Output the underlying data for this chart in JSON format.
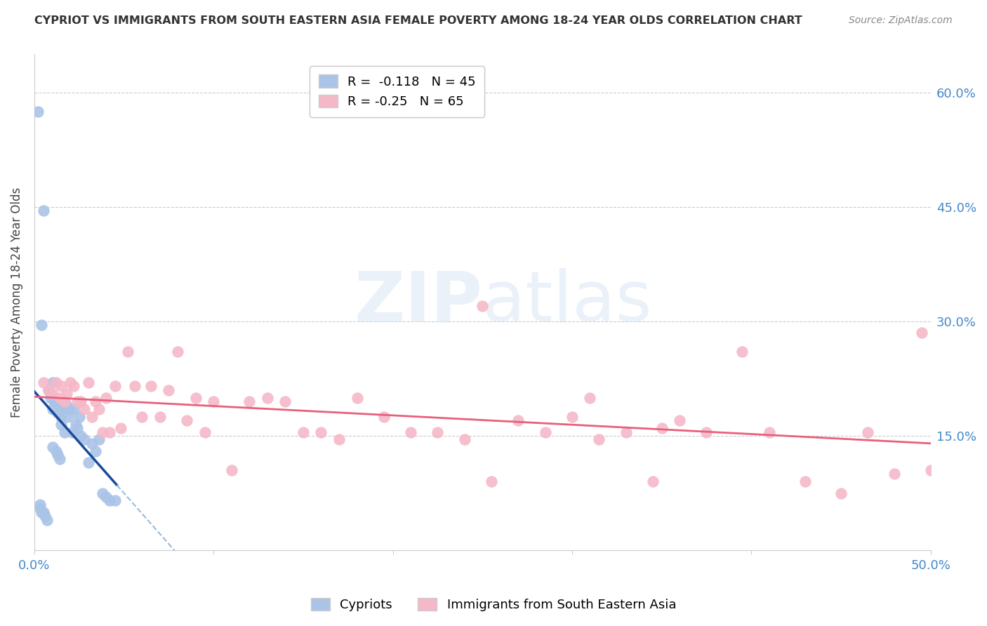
{
  "title": "CYPRIOT VS IMMIGRANTS FROM SOUTH EASTERN ASIA FEMALE POVERTY AMONG 18-24 YEAR OLDS CORRELATION CHART",
  "source": "Source: ZipAtlas.com",
  "ylabel": "Female Poverty Among 18-24 Year Olds",
  "xlim": [
    0.0,
    0.5
  ],
  "ylim": [
    0.0,
    0.65
  ],
  "ytick_vals": [
    0.15,
    0.3,
    0.45,
    0.6
  ],
  "ytick_labels": [
    "15.0%",
    "30.0%",
    "45.0%",
    "60.0%"
  ],
  "xtick_vals": [
    0.0,
    0.5
  ],
  "xtick_labels": [
    "0.0%",
    "50.0%"
  ],
  "grid_color": "#cccccc",
  "background_color": "#ffffff",
  "series1_label": "Cypriots",
  "series1_color": "#aac4e8",
  "series1_R": -0.118,
  "series1_N": 45,
  "series1_line_color": "#1a4a9a",
  "series1_line_dash_color": "#99bbdd",
  "series2_label": "Immigrants from South Eastern Asia",
  "series2_color": "#f5b8c8",
  "series2_R": -0.25,
  "series2_N": 65,
  "series2_line_color": "#e8607a",
  "cypriot_x": [
    0.002,
    0.003,
    0.003,
    0.004,
    0.004,
    0.005,
    0.005,
    0.006,
    0.007,
    0.008,
    0.009,
    0.01,
    0.01,
    0.01,
    0.011,
    0.012,
    0.012,
    0.013,
    0.013,
    0.014,
    0.014,
    0.015,
    0.015,
    0.015,
    0.016,
    0.017,
    0.017,
    0.018,
    0.019,
    0.02,
    0.021,
    0.022,
    0.023,
    0.024,
    0.025,
    0.026,
    0.028,
    0.03,
    0.032,
    0.034,
    0.036,
    0.038,
    0.04,
    0.042,
    0.045
  ],
  "cypriot_y": [
    0.575,
    0.06,
    0.055,
    0.05,
    0.295,
    0.445,
    0.05,
    0.045,
    0.04,
    0.21,
    0.2,
    0.22,
    0.185,
    0.135,
    0.195,
    0.195,
    0.13,
    0.18,
    0.125,
    0.19,
    0.12,
    0.185,
    0.175,
    0.165,
    0.185,
    0.195,
    0.155,
    0.19,
    0.175,
    0.185,
    0.155,
    0.185,
    0.165,
    0.16,
    0.175,
    0.15,
    0.145,
    0.115,
    0.14,
    0.13,
    0.145,
    0.075,
    0.07,
    0.065,
    0.065
  ],
  "sea_x": [
    0.005,
    0.008,
    0.01,
    0.012,
    0.014,
    0.015,
    0.017,
    0.018,
    0.02,
    0.022,
    0.024,
    0.026,
    0.028,
    0.03,
    0.032,
    0.034,
    0.036,
    0.038,
    0.04,
    0.042,
    0.045,
    0.048,
    0.052,
    0.056,
    0.06,
    0.065,
    0.07,
    0.075,
    0.08,
    0.085,
    0.09,
    0.095,
    0.1,
    0.11,
    0.12,
    0.13,
    0.14,
    0.15,
    0.16,
    0.17,
    0.18,
    0.195,
    0.21,
    0.225,
    0.24,
    0.255,
    0.27,
    0.285,
    0.3,
    0.315,
    0.33,
    0.345,
    0.36,
    0.375,
    0.395,
    0.41,
    0.43,
    0.45,
    0.465,
    0.48,
    0.25,
    0.31,
    0.35,
    0.495,
    0.5
  ],
  "sea_y": [
    0.22,
    0.21,
    0.205,
    0.22,
    0.2,
    0.215,
    0.195,
    0.205,
    0.22,
    0.215,
    0.195,
    0.195,
    0.185,
    0.22,
    0.175,
    0.195,
    0.185,
    0.155,
    0.2,
    0.155,
    0.215,
    0.16,
    0.26,
    0.215,
    0.175,
    0.215,
    0.175,
    0.21,
    0.26,
    0.17,
    0.2,
    0.155,
    0.195,
    0.105,
    0.195,
    0.2,
    0.195,
    0.155,
    0.155,
    0.145,
    0.2,
    0.175,
    0.155,
    0.155,
    0.145,
    0.09,
    0.17,
    0.155,
    0.175,
    0.145,
    0.155,
    0.09,
    0.17,
    0.155,
    0.26,
    0.155,
    0.09,
    0.075,
    0.155,
    0.1,
    0.32,
    0.2,
    0.16,
    0.285,
    0.105
  ]
}
